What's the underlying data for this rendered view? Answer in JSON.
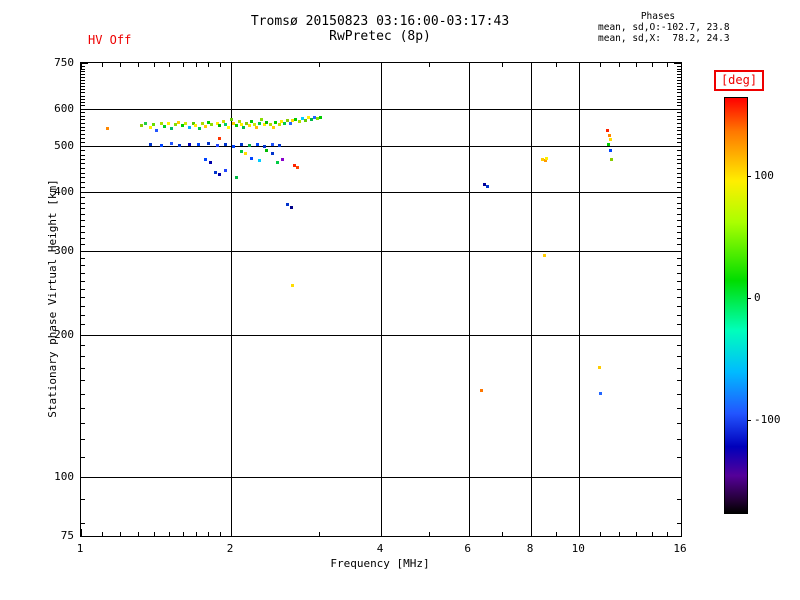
{
  "header": {
    "title": "Tromsø 20150823 03:16:00-03:17:43",
    "subtitle": "RwPretec (8p)",
    "hv_status": "HV Off",
    "phases": {
      "heading": "Phases",
      "line_o": "mean, sd,O:-102.7, 23.8",
      "line_x": "mean, sd,X:  78.2, 24.3"
    }
  },
  "axes": {
    "x": {
      "title": "Frequency [MHz]"
    },
    "y": {
      "title": "Stationary phase Virtual Height [km]"
    }
  },
  "colorbar": {
    "label": "[deg]",
    "ticks": [
      100,
      0,
      -100
    ],
    "lim": [
      -175,
      165
    ],
    "gradient": [
      "#ff0000 0%",
      "#ff7700 8%",
      "#ffee00 20%",
      "#aaff00 30%",
      "#00dd00 44%",
      "#00ffbb 56%",
      "#00bbff 66%",
      "#2255ff 76%",
      "#0000bb 84%",
      "#550099 91%",
      "#220033 97%",
      "#000000 100%"
    ]
  },
  "chart_data": {
    "type": "scatter",
    "title": "Tromsø 20150823 03:16:00-03:17:43",
    "subtitle": "RwPretec (8p)",
    "xlabel": "Frequency [MHz]",
    "ylabel": "Stationary phase Virtual Height [km]",
    "xscale": "log",
    "yscale": "log",
    "xlim": [
      1,
      16
    ],
    "ylim": [
      75,
      750
    ],
    "x_ticks": [
      1,
      2,
      4,
      6,
      8,
      10,
      16
    ],
    "y_ticks": [
      75,
      100,
      200,
      300,
      400,
      500,
      600,
      750
    ],
    "x_grid": [
      2,
      4,
      6,
      8,
      10
    ],
    "y_grid": [
      100,
      200,
      300,
      400,
      500,
      600
    ],
    "x_minor": [
      1.1,
      1.2,
      1.3,
      1.4,
      1.5,
      1.6,
      1.7,
      1.8,
      1.9,
      3,
      5,
      7,
      9,
      11,
      12,
      13,
      14,
      15
    ],
    "color_unit": "deg",
    "points": [
      [
        1.13,
        546,
        "#ff8800"
      ],
      [
        1.32,
        552,
        "#88cc00"
      ],
      [
        1.35,
        560,
        "#22cc44"
      ],
      [
        1.38,
        548,
        "#ffee00"
      ],
      [
        1.4,
        556,
        "#66dd00"
      ],
      [
        1.42,
        540,
        "#2255ff"
      ],
      [
        1.45,
        558,
        "#aadd00"
      ],
      [
        1.47,
        550,
        "#00cc22"
      ],
      [
        1.5,
        560,
        "#ffee00"
      ],
      [
        1.52,
        545,
        "#00bb66"
      ],
      [
        1.55,
        556,
        "#88dd00"
      ],
      [
        1.57,
        562,
        "#ffcc00"
      ],
      [
        1.6,
        552,
        "#00cc00"
      ],
      [
        1.62,
        558,
        "#ccee00"
      ],
      [
        1.65,
        548,
        "#00aaff"
      ],
      [
        1.68,
        560,
        "#55cc00"
      ],
      [
        1.7,
        554,
        "#ffee00"
      ],
      [
        1.73,
        546,
        "#00cc44"
      ],
      [
        1.75,
        558,
        "#aadd00"
      ],
      [
        1.78,
        550,
        "#ffcc00"
      ],
      [
        1.8,
        562,
        "#00cc00"
      ],
      [
        1.83,
        555,
        "#88dd00"
      ],
      [
        1.88,
        560,
        "#ffee00"
      ],
      [
        1.9,
        552,
        "#00bb00"
      ],
      [
        1.9,
        520,
        "#ff3300"
      ],
      [
        1.93,
        565,
        "#ccdd00"
      ],
      [
        1.95,
        556,
        "#00cc66"
      ],
      [
        1.98,
        548,
        "#ffff00"
      ],
      [
        2.0,
        570,
        "#66cc00"
      ],
      [
        2.02,
        560,
        "#ffcc00"
      ],
      [
        2.05,
        552,
        "#00cc00"
      ],
      [
        2.08,
        565,
        "#aadd00"
      ],
      [
        2.1,
        556,
        "#ffee00"
      ],
      [
        2.12,
        548,
        "#00bb44"
      ],
      [
        2.15,
        560,
        "#88cc00"
      ],
      [
        2.18,
        552,
        "#ffdd00"
      ],
      [
        2.2,
        565,
        "#00cc00"
      ],
      [
        2.23,
        556,
        "#ccee00"
      ],
      [
        2.25,
        548,
        "#ffbb00"
      ],
      [
        2.28,
        560,
        "#00cc44"
      ],
      [
        2.3,
        570,
        "#88dd00"
      ],
      [
        2.33,
        555,
        "#ffee00"
      ],
      [
        2.36,
        562,
        "#00bb00"
      ],
      [
        2.4,
        556,
        "#aadd00"
      ],
      [
        2.43,
        548,
        "#ffcc00"
      ],
      [
        2.46,
        562,
        "#00cc00"
      ],
      [
        2.5,
        556,
        "#ccdd00"
      ],
      [
        2.53,
        565,
        "#ffee00"
      ],
      [
        2.56,
        558,
        "#00cc44"
      ],
      [
        2.6,
        568,
        "#88cc00"
      ],
      [
        2.63,
        560,
        "#2266ff"
      ],
      [
        2.66,
        566,
        "#ffdd00"
      ],
      [
        2.7,
        570,
        "#00cc00"
      ],
      [
        2.74,
        563,
        "#aadd00"
      ],
      [
        2.78,
        572,
        "#00ccff"
      ],
      [
        2.82,
        566,
        "#66cc00"
      ],
      [
        2.86,
        574,
        "#ffee00"
      ],
      [
        2.9,
        570,
        "#00bb44"
      ],
      [
        2.94,
        576,
        "#2266ff"
      ],
      [
        2.98,
        572,
        "#88dd00"
      ],
      [
        3.02,
        576,
        "#00cc00"
      ],
      [
        1.38,
        505,
        "#0033cc"
      ],
      [
        1.45,
        503,
        "#0044ff"
      ],
      [
        1.52,
        506,
        "#2255ff"
      ],
      [
        1.58,
        502,
        "#0033cc"
      ],
      [
        1.65,
        505,
        "#0000bb"
      ],
      [
        1.72,
        504,
        "#0044ff"
      ],
      [
        1.8,
        506,
        "#0033cc"
      ],
      [
        1.88,
        503,
        "#2244ff"
      ],
      [
        1.95,
        505,
        "#0033cc"
      ],
      [
        2.02,
        500,
        "#0044ff"
      ],
      [
        2.1,
        504,
        "#0033cc"
      ],
      [
        2.18,
        502,
        "#00aa44"
      ],
      [
        2.26,
        505,
        "#0044ff"
      ],
      [
        2.34,
        500,
        "#0033cc"
      ],
      [
        2.42,
        504,
        "#2255ff"
      ],
      [
        2.5,
        502,
        "#0033cc"
      ],
      [
        1.78,
        468,
        "#0044ff"
      ],
      [
        1.82,
        462,
        "#0000aa"
      ],
      [
        1.86,
        440,
        "#0033cc"
      ],
      [
        1.9,
        436,
        "#0000aa"
      ],
      [
        1.95,
        444,
        "#2244ff"
      ],
      [
        2.05,
        430,
        "#00bb44"
      ],
      [
        2.1,
        488,
        "#00cc44"
      ],
      [
        2.14,
        482,
        "#ffdd00"
      ],
      [
        2.2,
        472,
        "#0044ff"
      ],
      [
        2.28,
        466,
        "#00ccff"
      ],
      [
        2.36,
        490,
        "#00bb00"
      ],
      [
        2.42,
        482,
        "#0033cc"
      ],
      [
        2.48,
        462,
        "#00cc44"
      ],
      [
        2.54,
        470,
        "#8800cc"
      ],
      [
        2.68,
        456,
        "#ff2200"
      ],
      [
        2.72,
        450,
        "#ff4400"
      ],
      [
        2.6,
        376,
        "#0033cc"
      ],
      [
        2.64,
        372,
        "#000088"
      ],
      [
        2.66,
        254,
        "#ffdd00"
      ],
      [
        6.45,
        415,
        "#000099"
      ],
      [
        6.55,
        412,
        "#0033cc"
      ],
      [
        6.35,
        152,
        "#ff7700"
      ],
      [
        8.45,
        470,
        "#ffcc00"
      ],
      [
        8.55,
        466,
        "#ff9900"
      ],
      [
        8.6,
        472,
        "#ffee00"
      ],
      [
        8.5,
        294,
        "#ffcc00"
      ],
      [
        11.4,
        540,
        "#ff2200"
      ],
      [
        11.5,
        528,
        "#ff8800"
      ],
      [
        11.55,
        518,
        "#ffdd00"
      ],
      [
        11.45,
        505,
        "#00cc00"
      ],
      [
        11.55,
        490,
        "#0044ff"
      ],
      [
        11.6,
        468,
        "#88cc00"
      ],
      [
        11.0,
        170,
        "#ffcc00"
      ],
      [
        11.05,
        150,
        "#2266ff"
      ]
    ]
  }
}
